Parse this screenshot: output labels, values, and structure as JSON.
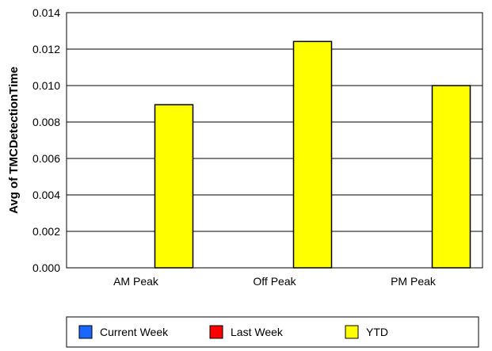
{
  "chart_data": {
    "type": "bar",
    "title": "",
    "xlabel": "",
    "ylabel": "Avg of TMCDetectionTime",
    "categories": [
      "AM Peak",
      "Off Peak",
      "PM Peak"
    ],
    "ylim": [
      0,
      0.014
    ],
    "yticks": [
      "0.000",
      "0.002",
      "0.004",
      "0.006",
      "0.008",
      "0.010",
      "0.012",
      "0.014"
    ],
    "grid": true,
    "legend_position": "bottom",
    "series": [
      {
        "name": "Current Week",
        "color": "#1a66ff",
        "values": [
          0,
          0,
          0
        ]
      },
      {
        "name": "Last Week",
        "color": "#ff0000",
        "values": [
          0,
          0,
          0
        ]
      },
      {
        "name": "YTD",
        "color": "#ffff00",
        "values": [
          0.00895,
          0.01242,
          0.01
        ]
      }
    ]
  }
}
